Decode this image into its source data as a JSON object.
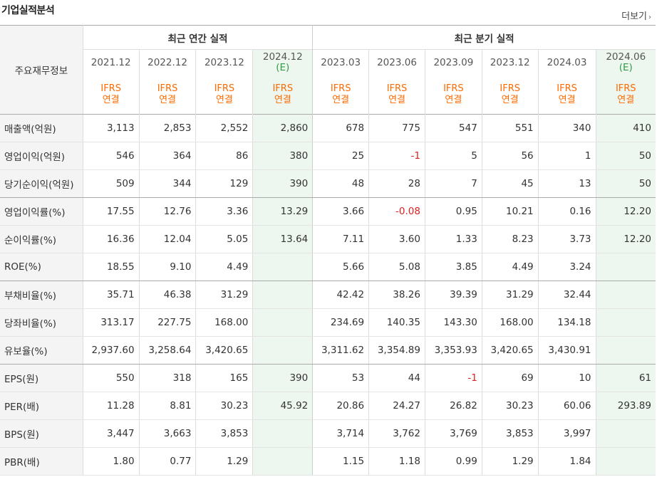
{
  "title": "기업실적분석",
  "more_label": "더보기",
  "more_icon": "chevron-right-icon",
  "header": {
    "row_label": "주요재무정보",
    "annual_group": "최근 연간 실적",
    "quarter_group": "최근 분기 실적",
    "ifrs_label": "IFRS",
    "consolidated_label": "연결",
    "estimate_mark": "(E)"
  },
  "periods": [
    {
      "label": "2021.12",
      "estimate": false
    },
    {
      "label": "2022.12",
      "estimate": false
    },
    {
      "label": "2023.12",
      "estimate": false
    },
    {
      "label": "2024.12",
      "estimate": true
    },
    {
      "label": "2023.03",
      "estimate": false
    },
    {
      "label": "2023.06",
      "estimate": false
    },
    {
      "label": "2023.09",
      "estimate": false
    },
    {
      "label": "2023.12",
      "estimate": false
    },
    {
      "label": "2024.03",
      "estimate": false
    },
    {
      "label": "2024.06",
      "estimate": true
    }
  ],
  "rows": [
    {
      "label": "매출액(억원)",
      "values": [
        "3,113",
        "2,853",
        "2,552",
        "2,860",
        "678",
        "775",
        "547",
        "551",
        "340",
        "410"
      ]
    },
    {
      "label": "영업이익(억원)",
      "values": [
        "546",
        "364",
        "86",
        "380",
        "25",
        "-1",
        "5",
        "56",
        "1",
        "50"
      ]
    },
    {
      "label": "당기순이익(억원)",
      "values": [
        "509",
        "344",
        "129",
        "390",
        "48",
        "28",
        "7",
        "45",
        "13",
        "50"
      ]
    },
    {
      "label": "영업이익률(%)",
      "values": [
        "17.55",
        "12.76",
        "3.36",
        "13.29",
        "3.66",
        "-0.08",
        "0.95",
        "10.21",
        "0.16",
        "12.20"
      ]
    },
    {
      "label": "순이익률(%)",
      "values": [
        "16.36",
        "12.04",
        "5.05",
        "13.64",
        "7.11",
        "3.60",
        "1.33",
        "8.23",
        "3.73",
        "12.20"
      ]
    },
    {
      "label": "ROE(%)",
      "values": [
        "18.55",
        "9.10",
        "4.49",
        "",
        "5.66",
        "5.08",
        "3.85",
        "4.49",
        "3.24",
        ""
      ]
    },
    {
      "label": "부채비율(%)",
      "values": [
        "35.71",
        "46.38",
        "31.29",
        "",
        "42.42",
        "38.26",
        "39.39",
        "31.29",
        "32.44",
        ""
      ]
    },
    {
      "label": "당좌비율(%)",
      "values": [
        "313.17",
        "227.75",
        "168.00",
        "",
        "234.69",
        "140.35",
        "143.30",
        "168.00",
        "134.18",
        ""
      ]
    },
    {
      "label": "유보율(%)",
      "values": [
        "2,937.60",
        "3,258.64",
        "3,420.65",
        "",
        "3,311.62",
        "3,354.89",
        "3,353.93",
        "3,420.65",
        "3,430.91",
        ""
      ]
    },
    {
      "label": "EPS(원)",
      "values": [
        "550",
        "318",
        "165",
        "390",
        "53",
        "44",
        "-1",
        "69",
        "10",
        "61"
      ]
    },
    {
      "label": "PER(배)",
      "values": [
        "11.28",
        "8.81",
        "30.23",
        "45.92",
        "20.86",
        "24.27",
        "26.82",
        "30.23",
        "60.06",
        "293.89"
      ]
    },
    {
      "label": "BPS(원)",
      "values": [
        "3,447",
        "3,663",
        "3,853",
        "",
        "3,714",
        "3,762",
        "3,769",
        "3,853",
        "3,997",
        ""
      ]
    },
    {
      "label": "PBR(배)",
      "values": [
        "1.80",
        "0.77",
        "1.29",
        "",
        "1.15",
        "1.18",
        "0.99",
        "1.29",
        "1.84",
        ""
      ]
    }
  ],
  "negative_color": "#e02020",
  "estimate_bg_color": "#eef7ef",
  "ifrs_color": "#ff6a00"
}
